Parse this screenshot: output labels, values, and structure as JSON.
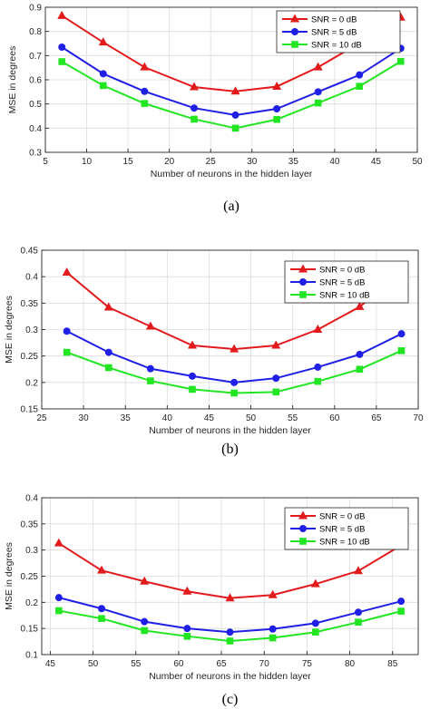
{
  "colors": {
    "snr0": "#e31a1c",
    "snr5": "#1f1fe6",
    "snr10": "#22e622",
    "grid": "#dcdcdc",
    "axis": "#262626"
  },
  "chart_data": [
    {
      "type": "line",
      "caption": "(a)",
      "xlabel": "Number of neurons in the hidden layer",
      "ylabel": "MSE in degrees",
      "xlim": [
        5,
        50
      ],
      "ylim": [
        0.3,
        0.9
      ],
      "xticks": [
        5,
        10,
        15,
        20,
        25,
        30,
        35,
        40,
        45,
        50
      ],
      "yticks": [
        0.3,
        0.4,
        0.5,
        0.6,
        0.7,
        0.8,
        0.9
      ],
      "grid": true,
      "legend": "top-right",
      "x": [
        7,
        12,
        17,
        23,
        28,
        33,
        38,
        43,
        48
      ],
      "series": [
        {
          "name": "SNR = 0 dB",
          "marker": "triangle",
          "values": [
            0.865,
            0.755,
            0.652,
            0.57,
            0.552,
            0.572,
            0.652,
            0.752,
            0.858
          ]
        },
        {
          "name": "SNR = 5 dB",
          "marker": "circle",
          "values": [
            0.735,
            0.625,
            0.552,
            0.483,
            0.454,
            0.48,
            0.55,
            0.62,
            0.73
          ]
        },
        {
          "name": "SNR = 10 dB",
          "marker": "square",
          "values": [
            0.675,
            0.576,
            0.502,
            0.437,
            0.4,
            0.436,
            0.504,
            0.573,
            0.676
          ]
        }
      ]
    },
    {
      "type": "line",
      "caption": "(b)",
      "xlabel": "Number of neurons in the hidden layer",
      "ylabel": "MSE in degrees",
      "xlim": [
        25,
        70
      ],
      "ylim": [
        0.15,
        0.45
      ],
      "xticks": [
        25,
        30,
        35,
        40,
        45,
        50,
        55,
        60,
        65,
        70
      ],
      "yticks": [
        0.15,
        0.2,
        0.25,
        0.3,
        0.35,
        0.4,
        0.45
      ],
      "grid": true,
      "legend": "top-right",
      "x": [
        28,
        33,
        38,
        43,
        48,
        53,
        58,
        63,
        68
      ],
      "series": [
        {
          "name": "SNR = 0 dB",
          "marker": "triangle",
          "values": [
            0.408,
            0.342,
            0.306,
            0.27,
            0.263,
            0.27,
            0.3,
            0.343,
            0.408
          ]
        },
        {
          "name": "SNR = 5 dB",
          "marker": "circle",
          "values": [
            0.297,
            0.257,
            0.226,
            0.212,
            0.2,
            0.208,
            0.229,
            0.253,
            0.292
          ]
        },
        {
          "name": "SNR = 10 dB",
          "marker": "square",
          "values": [
            0.257,
            0.228,
            0.203,
            0.187,
            0.18,
            0.182,
            0.202,
            0.225,
            0.26
          ]
        }
      ]
    },
    {
      "type": "line",
      "caption": "(c)",
      "xlabel": "Number of neurons in the hidden layer",
      "ylabel": "MSE in degrees",
      "xlim": [
        44,
        88
      ],
      "ylim": [
        0.1,
        0.4
      ],
      "xticks": [
        45,
        50,
        55,
        60,
        65,
        70,
        75,
        80,
        85
      ],
      "yticks": [
        0.1,
        0.15,
        0.2,
        0.25,
        0.3,
        0.35,
        0.4
      ],
      "grid": true,
      "legend": "top-right",
      "x": [
        46,
        51,
        56,
        61,
        66,
        71,
        76,
        81,
        86
      ],
      "series": [
        {
          "name": "SNR = 0 dB",
          "marker": "triangle",
          "values": [
            0.313,
            0.261,
            0.24,
            0.221,
            0.208,
            0.214,
            0.235,
            0.26,
            0.309
          ]
        },
        {
          "name": "SNR = 5 dB",
          "marker": "circle",
          "values": [
            0.209,
            0.188,
            0.163,
            0.15,
            0.143,
            0.149,
            0.16,
            0.181,
            0.202
          ]
        },
        {
          "name": "SNR = 10 dB",
          "marker": "square",
          "values": [
            0.184,
            0.169,
            0.146,
            0.135,
            0.126,
            0.132,
            0.143,
            0.162,
            0.183
          ]
        }
      ]
    }
  ]
}
